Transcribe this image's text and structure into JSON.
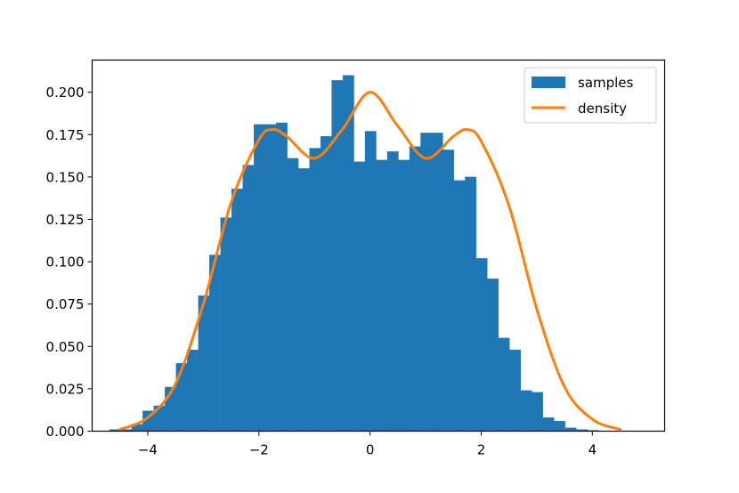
{
  "chart_data": {
    "type": "bar",
    "title": "",
    "xlabel": "",
    "ylabel": "",
    "xlim": [
      -5.0,
      5.3
    ],
    "ylim": [
      0,
      0.219
    ],
    "xticks": [
      -4,
      -2,
      0,
      2,
      4
    ],
    "xtick_labels": [
      "−4",
      "−2",
      "0",
      "2",
      "4"
    ],
    "yticks": [
      0.0,
      0.025,
      0.05,
      0.075,
      0.1,
      0.125,
      0.15,
      0.175,
      0.2
    ],
    "ytick_labels": [
      "0.000",
      "0.025",
      "0.050",
      "0.075",
      "0.100",
      "0.125",
      "0.150",
      "0.175",
      "0.200"
    ],
    "grid": false,
    "legend_position": "top-right",
    "colors": {
      "samples": "#1f77b4",
      "density": "#ff7f0e"
    },
    "series": [
      {
        "name": "samples",
        "type": "histogram",
        "bin_start": -4.69,
        "bin_width": 0.2,
        "values": [
          0.001,
          0.001,
          0.004,
          0.012,
          0.015,
          0.026,
          0.04,
          0.048,
          0.08,
          0.104,
          0.126,
          0.143,
          0.157,
          0.181,
          0.181,
          0.182,
          0.161,
          0.155,
          0.167,
          0.174,
          0.207,
          0.21,
          0.159,
          0.177,
          0.16,
          0.165,
          0.16,
          0.168,
          0.176,
          0.176,
          0.166,
          0.148,
          0.15,
          0.102,
          0.09,
          0.055,
          0.048,
          0.024,
          0.023,
          0.008,
          0.006,
          0.002,
          0.001,
          0.0005
        ]
      },
      {
        "name": "density",
        "type": "line",
        "x": [
          -4.5,
          -4.0,
          -3.5,
          -3.0,
          -2.5,
          -2.0,
          -1.75,
          -1.5,
          -1.0,
          -0.5,
          0.0,
          0.5,
          1.0,
          1.5,
          1.75,
          2.0,
          2.5,
          3.0,
          3.5,
          4.0,
          4.5
        ],
        "y": [
          0.001,
          0.008,
          0.028,
          0.075,
          0.135,
          0.172,
          0.178,
          0.174,
          0.161,
          0.178,
          0.2,
          0.18,
          0.161,
          0.174,
          0.178,
          0.171,
          0.133,
          0.072,
          0.026,
          0.007,
          0.001
        ]
      }
    ]
  }
}
